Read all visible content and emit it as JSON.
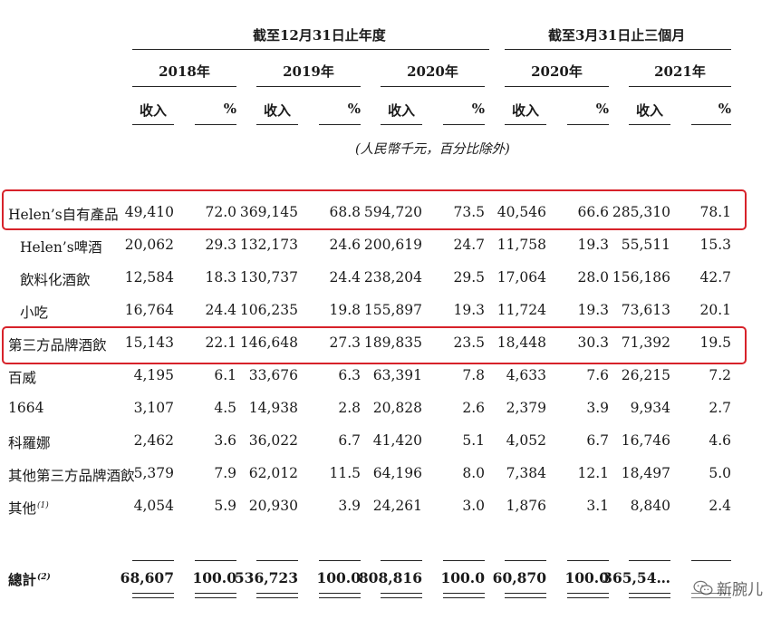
{
  "header": {
    "group_year": "截至12月31日止年度",
    "group_quarter": "截至3月31日止三個月",
    "years": [
      "2018年",
      "2019年",
      "2020年",
      "2020年",
      "2021年"
    ],
    "revenue_label": "收入",
    "pct_label": "%",
    "unit_note": "(人民幣千元，百分比除外)"
  },
  "rows": [
    {
      "label": "Helen’s自有產品",
      "values": [
        "49,410",
        "72.0",
        "369,145",
        "68.8",
        "594,720",
        "73.5",
        "40,546",
        "66.6",
        "285,310",
        "78.1"
      ]
    },
    {
      "label": "Helen’s啤酒",
      "values": [
        "20,062",
        "29.3",
        "132,173",
        "24.6",
        "200,619",
        "24.7",
        "11,758",
        "19.3",
        "55,511",
        "15.3"
      ]
    },
    {
      "label": "飲料化酒飲",
      "values": [
        "12,584",
        "18.3",
        "130,737",
        "24.4",
        "238,204",
        "29.5",
        "17,064",
        "28.0",
        "156,186",
        "42.7"
      ]
    },
    {
      "label": "小吃",
      "values": [
        "16,764",
        "24.4",
        "106,235",
        "19.8",
        "155,897",
        "19.3",
        "11,724",
        "19.3",
        "73,613",
        "20.1"
      ]
    },
    {
      "label": "第三方品牌酒飲",
      "values": [
        "15,143",
        "22.1",
        "146,648",
        "27.3",
        "189,835",
        "23.5",
        "18,448",
        "30.3",
        "71,392",
        "19.5"
      ]
    },
    {
      "label": "百威",
      "values": [
        "4,195",
        "6.1",
        "33,676",
        "6.3",
        "63,391",
        "7.8",
        "4,633",
        "7.6",
        "26,215",
        "7.2"
      ]
    },
    {
      "label": "1664",
      "values": [
        "3,107",
        "4.5",
        "14,938",
        "2.8",
        "20,828",
        "2.6",
        "2,379",
        "3.9",
        "9,934",
        "2.7"
      ]
    },
    {
      "label": "科羅娜",
      "values": [
        "2,462",
        "3.6",
        "36,022",
        "6.7",
        "41,420",
        "5.1",
        "4,052",
        "6.7",
        "16,746",
        "4.6"
      ]
    },
    {
      "label": "其他第三方品牌酒飲",
      "values": [
        "5,379",
        "7.9",
        "62,012",
        "11.5",
        "64,196",
        "8.0",
        "7,384",
        "12.1",
        "18,497",
        "5.0"
      ]
    },
    {
      "label": "其他",
      "footnote": "(1)",
      "values": [
        "4,054",
        "5.9",
        "20,930",
        "3.9",
        "24,261",
        "3.0",
        "1,876",
        "3.1",
        "8,840",
        "2.4"
      ]
    }
  ],
  "total": {
    "label": "總計",
    "footnote": "(2)",
    "values": [
      "68,607",
      "100.0",
      "536,723",
      "100.0",
      "808,816",
      "100.0",
      "60,870",
      "100.0",
      "365,54…",
      ""
    ]
  },
  "watermark": {
    "text": "新腕儿",
    "icon": "wechat-icon"
  }
}
